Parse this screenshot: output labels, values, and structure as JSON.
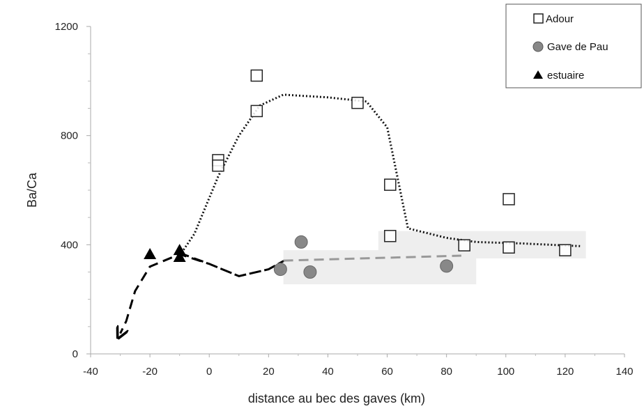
{
  "chart_data": {
    "type": "scatter",
    "xlabel": "distance au bec des gaves (km)",
    "ylabel": "Ba/Ca",
    "xlim": [
      -40,
      140
    ],
    "ylim": [
      0,
      1200
    ],
    "x_ticks": [
      -40,
      -20,
      0,
      20,
      40,
      60,
      80,
      100,
      120,
      140
    ],
    "y_ticks": [
      0,
      400,
      800,
      1200
    ],
    "legend": {
      "placement": "top-right"
    },
    "series": [
      {
        "name": "Adour",
        "marker": "open-square",
        "color": "#222222",
        "points": [
          [
            3,
            710
          ],
          [
            3,
            690
          ],
          [
            16,
            1020
          ],
          [
            16,
            890
          ],
          [
            50,
            920
          ],
          [
            61,
            620
          ],
          [
            61,
            432
          ],
          [
            86,
            398
          ],
          [
            101,
            390
          ],
          [
            101,
            567
          ],
          [
            120,
            380
          ]
        ]
      },
      {
        "name": "Gave de Pau",
        "marker": "circle",
        "color": "#888888",
        "points": [
          [
            24,
            310
          ],
          [
            31,
            410
          ],
          [
            34,
            300
          ],
          [
            80,
            322
          ]
        ]
      },
      {
        "name": "estuaire",
        "marker": "triangle",
        "color": "#000000",
        "points": [
          [
            -20,
            365
          ],
          [
            -10,
            380
          ],
          [
            -10,
            355
          ]
        ]
      }
    ],
    "trend_lines": [
      {
        "style": "dotted",
        "color": "#111111",
        "points": [
          [
            -10,
            360
          ],
          [
            -5,
            440
          ],
          [
            3,
            650
          ],
          [
            10,
            800
          ],
          [
            17,
            910
          ],
          [
            25,
            950
          ],
          [
            40,
            940
          ],
          [
            53,
            925
          ],
          [
            60,
            830
          ],
          [
            67,
            460
          ],
          [
            80,
            425
          ],
          [
            90,
            410
          ],
          [
            105,
            405
          ],
          [
            125,
            395
          ]
        ]
      },
      {
        "style": "dashed",
        "color": "#000000",
        "arrow_end": true,
        "points": [
          [
            -10,
            370
          ],
          [
            0,
            330
          ],
          [
            10,
            285
          ],
          [
            20,
            310
          ],
          [
            25,
            340
          ],
          [
            20,
            310
          ],
          [
            10,
            285
          ],
          [
            0,
            330
          ],
          [
            -10,
            365
          ],
          [
            -20,
            320
          ],
          [
            -25,
            230
          ],
          [
            -28,
            120
          ],
          [
            -30,
            75
          ]
        ]
      },
      {
        "style": "dashed",
        "color": "#999999",
        "points": [
          [
            25,
            342
          ],
          [
            85,
            360
          ]
        ]
      }
    ],
    "shaded_regions": [
      {
        "x": [
          25,
          90
        ],
        "y": [
          255,
          380
        ],
        "color": "#eeeeee"
      },
      {
        "x": [
          57,
          127
        ],
        "y": [
          350,
          450
        ],
        "color": "#eeeeee"
      }
    ]
  }
}
